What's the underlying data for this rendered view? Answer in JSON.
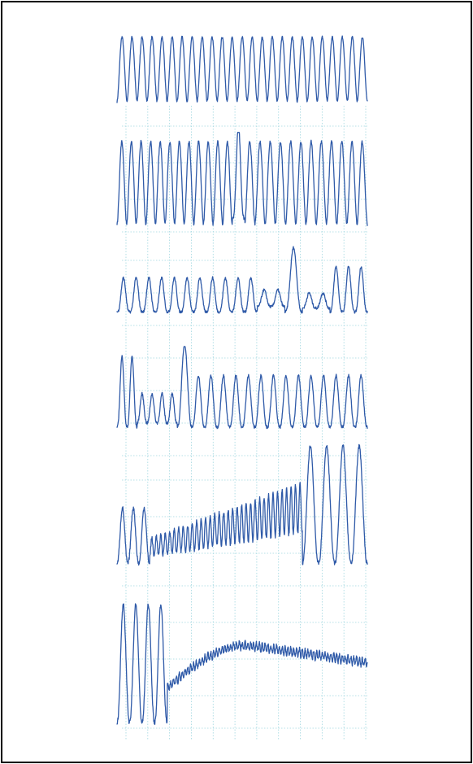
{
  "chart_data": {
    "type": "line",
    "title": "",
    "xlabel": "",
    "ylabel": "",
    "grid": true,
    "trace_color": "#2f5aa8",
    "grid_color": "#9fd6df",
    "series": [
      {
        "segments": [
          {
            "kind": "osc",
            "start": 0.0,
            "end": 1.0,
            "cycles": 25,
            "amp": 0.92,
            "base": 0.04,
            "shape": 0.9
          }
        ]
      },
      {
        "segments": [
          {
            "kind": "osc",
            "start": 0.0,
            "end": 0.46,
            "cycles": 12,
            "amp": 0.88,
            "base": 0.04,
            "shape": 0.9
          },
          {
            "kind": "osc",
            "start": 0.46,
            "end": 0.51,
            "cycles": 1,
            "amp": 1.0,
            "base": 0.1,
            "shape": 1.8
          },
          {
            "kind": "osc",
            "start": 0.51,
            "end": 1.0,
            "cycles": 12,
            "amp": 0.88,
            "base": 0.04,
            "shape": 0.9
          }
        ]
      },
      {
        "segments": [
          {
            "kind": "osc",
            "start": 0.0,
            "end": 0.56,
            "cycles": 11,
            "amp": 0.45,
            "base": 0.05,
            "shape": 1.6
          },
          {
            "kind": "osc",
            "start": 0.56,
            "end": 0.67,
            "cycles": 2,
            "amp": 0.22,
            "base": 0.12,
            "shape": 1.6
          },
          {
            "kind": "osc",
            "start": 0.67,
            "end": 0.74,
            "cycles": 1,
            "amp": 0.85,
            "base": 0.05,
            "shape": 1.6
          },
          {
            "kind": "osc",
            "start": 0.74,
            "end": 0.85,
            "cycles": 2,
            "amp": 0.2,
            "base": 0.1,
            "shape": 1.6
          },
          {
            "kind": "osc",
            "start": 0.85,
            "end": 1.0,
            "cycles": 3,
            "amp": 0.6,
            "base": 0.05,
            "shape": 1.6
          }
        ]
      },
      {
        "segments": [
          {
            "kind": "osc",
            "start": 0.0,
            "end": 0.08,
            "cycles": 2,
            "amp": 0.85,
            "base": 0.05,
            "shape": 1.4
          },
          {
            "kind": "osc",
            "start": 0.08,
            "end": 0.24,
            "cycles": 4,
            "amp": 0.35,
            "base": 0.1,
            "shape": 1.4
          },
          {
            "kind": "osc",
            "start": 0.24,
            "end": 0.3,
            "cycles": 1,
            "amp": 1.0,
            "base": 0.05,
            "shape": 1.4
          },
          {
            "kind": "osc",
            "start": 0.3,
            "end": 1.0,
            "cycles": 14,
            "amp": 0.62,
            "base": 0.05,
            "shape": 1.4
          }
        ]
      },
      {
        "segments": [
          {
            "kind": "osc",
            "start": 0.0,
            "end": 0.13,
            "cycles": 3,
            "amp": 0.45,
            "base": 0.05,
            "shape": 1.2
          },
          {
            "kind": "ramp",
            "start": 0.13,
            "end": 0.74,
            "cycles": 34,
            "amp_from": 0.15,
            "amp_to": 0.4,
            "base_from": 0.1,
            "base_to": 0.3
          },
          {
            "kind": "osc",
            "start": 0.74,
            "end": 1.0,
            "cycles": 4,
            "amp": 0.95,
            "base": 0.05,
            "shape": 1.2
          }
        ]
      },
      {
        "segments": [
          {
            "kind": "osc",
            "start": 0.0,
            "end": 0.2,
            "cycles": 4,
            "amp": 0.95,
            "base": 0.0,
            "shape": 1.2
          },
          {
            "kind": "decay",
            "start": 0.2,
            "end": 1.0,
            "cycles": 70,
            "level_from": 0.28,
            "level_peak": 0.62,
            "level_to": 0.48,
            "ripple": 0.03
          }
        ]
      }
    ]
  }
}
